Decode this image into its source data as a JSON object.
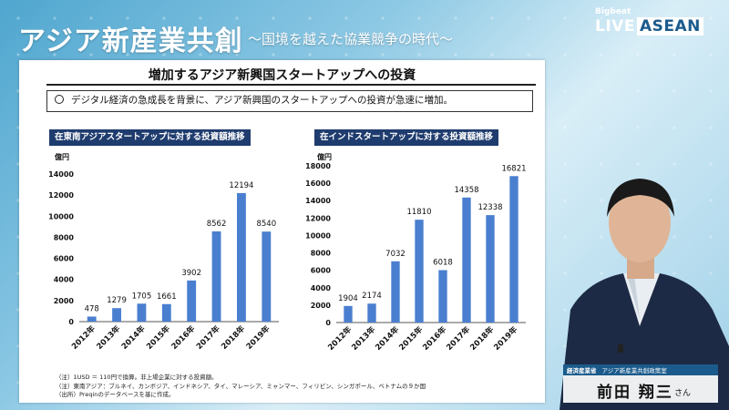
{
  "header": {
    "title": "アジア新産業共創",
    "subtitle": "〜国境を越えた協業競争の時代〜",
    "logo_small": "Bigbeat",
    "logo_live": "LIVE",
    "logo_asean": "ASEAN"
  },
  "slide": {
    "title": "増加するアジア新興国スタートアップへの投資",
    "bullet": "デジタル経済の急成長を背景に、アジア新興国のスタートアップへの投資が急速に増加。",
    "notes": [
      "（注）1USD ＝ 110円で換算。非上場企業に対する投資額。",
      "（注）東南アジア：ブルネイ、カンボジア、インドネシア、タイ、マレーシア、ミャンマー、フィリピン、シンガポール、ベトナムの９か国",
      "（出所）Preqinのデータベースを基に作成。"
    ]
  },
  "colors": {
    "bar": "#4a7fd0",
    "panel_header": "#1f3c6e",
    "name_band": "#1b5b8c"
  },
  "chart_data": [
    {
      "type": "bar",
      "title": "在東南アジアスタートアップに対する投資額推移",
      "ylabel": "億円",
      "categories": [
        "2012年",
        "2013年",
        "2014年",
        "2015年",
        "2016年",
        "2017年",
        "2018年",
        "2019年"
      ],
      "values": [
        478,
        1279,
        1705,
        1661,
        3902,
        8562,
        12194,
        8540
      ],
      "ylim": [
        0,
        14000
      ],
      "yticks": [
        0,
        2000,
        4000,
        6000,
        8000,
        10000,
        12000,
        14000
      ],
      "grid": false
    },
    {
      "type": "bar",
      "title": "在インドスタートアップに対する投資額推移",
      "ylabel": "億円",
      "categories": [
        "2012年",
        "2013年",
        "2014年",
        "2015年",
        "2016年",
        "2017年",
        "2018年",
        "2019年"
      ],
      "values": [
        1904,
        2174,
        7032,
        11810,
        6018,
        14358,
        12338,
        16821
      ],
      "ylim": [
        0,
        18000
      ],
      "yticks": [
        0,
        2000,
        4000,
        6000,
        8000,
        10000,
        12000,
        14000,
        16000,
        18000
      ],
      "grid": false
    }
  ],
  "speaker": {
    "org": "経済産業省",
    "role": "アジア新産業共創政策室",
    "name": "前田 翔三",
    "honorific": "さん"
  }
}
